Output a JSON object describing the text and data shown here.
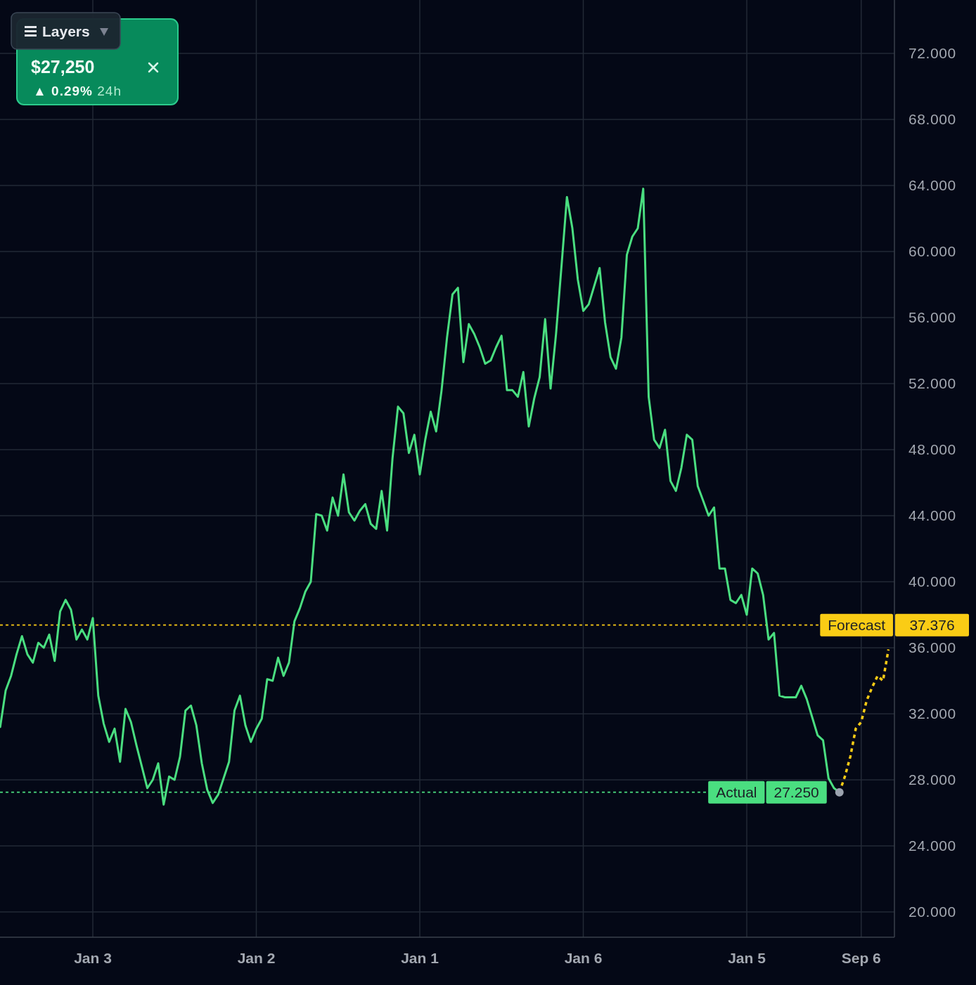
{
  "chart_data": {
    "type": "line",
    "categories": [
      null,
      null,
      null,
      null,
      null,
      null,
      null,
      null,
      null,
      null,
      null,
      null,
      null,
      null,
      null,
      null,
      null,
      "Jan 3",
      null,
      null,
      null,
      null,
      null,
      null,
      null,
      null,
      null,
      null,
      null,
      null,
      null,
      null,
      null,
      null,
      null,
      null,
      null,
      null,
      null,
      null,
      null,
      null,
      null,
      null,
      null,
      null,
      null,
      "Jan 2",
      null,
      null,
      null,
      null,
      null,
      null,
      null,
      null,
      null,
      null,
      null,
      null,
      null,
      null,
      null,
      null,
      null,
      null,
      null,
      null,
      null,
      null,
      null,
      null,
      null,
      null,
      null,
      null,
      null,
      "Jan 1",
      null,
      null,
      null,
      null,
      null,
      null,
      null,
      null,
      null,
      null,
      null,
      null,
      null,
      null,
      null,
      null,
      null,
      null,
      null,
      null,
      null,
      null,
      null,
      null,
      null,
      null,
      null,
      null,
      null,
      "Jan 6",
      null,
      null,
      null,
      null,
      null,
      null,
      null,
      null,
      null,
      null,
      null,
      null,
      null,
      null,
      null,
      null,
      null,
      null,
      null,
      null,
      null,
      null,
      null,
      null,
      null,
      null,
      null,
      null,
      null,
      "Jan 5",
      null,
      null,
      null,
      null,
      null,
      null,
      null,
      null,
      null,
      null,
      null,
      null,
      null,
      null,
      null,
      null,
      null,
      null,
      null,
      null,
      "Sep 6",
      null,
      null,
      null,
      null,
      null
    ],
    "series": [
      {
        "color": "#4ade80",
        "values": [
          31.2,
          33.4,
          34.3,
          35.6,
          36.7,
          35.6,
          35.1,
          36.3,
          36.0,
          36.8,
          35.2,
          38.2,
          38.9,
          38.3,
          36.5,
          37.1,
          36.5,
          37.8,
          33.1,
          31.4,
          30.3,
          31.1,
          29.1,
          32.3,
          31.5,
          30.1,
          28.8,
          27.5,
          28.0,
          29.0,
          26.5,
          28.2,
          28.0,
          29.4,
          32.2,
          32.5,
          31.3,
          29.0,
          27.4,
          26.6,
          27.1,
          28.1,
          29.1,
          32.2,
          33.1,
          31.3,
          30.3,
          31.1,
          31.7,
          34.1,
          34.0,
          35.4,
          34.3,
          35.1,
          37.6,
          38.4,
          39.4,
          40.0,
          44.1,
          44.0,
          43.1,
          45.1,
          44.0,
          46.5,
          44.2,
          43.7,
          44.3,
          44.7,
          43.5,
          43.2,
          45.5,
          43.1,
          47.5,
          50.6,
          50.2,
          47.8,
          48.9,
          46.5,
          48.6,
          50.3,
          49.1,
          51.6,
          54.8,
          57.4,
          57.8,
          53.3,
          55.6,
          55.0,
          54.2,
          53.2,
          53.4,
          54.2,
          54.9,
          51.6,
          51.6,
          51.2,
          52.7,
          49.4,
          51.1,
          52.4,
          55.9,
          51.7,
          55.0,
          59.1,
          63.3,
          61.4,
          58.3,
          56.4,
          56.8,
          57.9,
          59.0,
          55.7,
          53.6,
          52.9,
          54.8,
          59.8,
          60.9,
          61.4,
          63.8,
          51.2,
          48.6,
          48.1,
          49.2,
          46.1,
          45.5,
          46.9,
          48.9,
          48.6,
          45.8,
          44.9,
          44.0,
          44.5,
          40.8,
          40.8,
          38.9,
          38.7,
          39.2,
          38.0,
          40.8,
          40.5,
          39.2,
          36.5,
          36.9,
          33.1,
          33.0,
          33.0,
          33.0,
          33.7,
          32.9,
          31.8,
          30.7,
          30.4,
          28.1,
          27.5,
          27.25,
          null,
          null,
          null,
          null,
          null,
          null,
          null,
          null,
          null
        ]
      },
      {
        "color": "#facc15",
        "line_style": "dotted",
        "values": [
          null,
          null,
          null,
          null,
          null,
          null,
          null,
          null,
          null,
          null,
          null,
          null,
          null,
          null,
          null,
          null,
          null,
          null,
          null,
          null,
          null,
          null,
          null,
          null,
          null,
          null,
          null,
          null,
          null,
          null,
          null,
          null,
          null,
          null,
          null,
          null,
          null,
          null,
          null,
          null,
          null,
          null,
          null,
          null,
          null,
          null,
          null,
          null,
          null,
          null,
          null,
          null,
          null,
          null,
          null,
          null,
          null,
          null,
          null,
          null,
          null,
          null,
          null,
          null,
          null,
          null,
          null,
          null,
          null,
          null,
          null,
          null,
          null,
          null,
          null,
          null,
          null,
          null,
          null,
          null,
          null,
          null,
          null,
          null,
          null,
          null,
          null,
          null,
          null,
          null,
          null,
          null,
          null,
          null,
          null,
          null,
          null,
          null,
          null,
          null,
          null,
          null,
          null,
          null,
          null,
          null,
          null,
          null,
          null,
          null,
          null,
          null,
          null,
          null,
          null,
          null,
          null,
          null,
          null,
          null,
          null,
          null,
          null,
          null,
          null,
          null,
          null,
          null,
          null,
          null,
          null,
          null,
          null,
          null,
          null,
          null,
          null,
          null,
          null,
          null,
          null,
          null,
          null,
          null,
          null,
          null,
          null,
          null,
          null,
          null,
          null,
          null,
          null,
          null,
          27.25,
          28.2,
          29.4,
          31.1,
          31.5,
          32.8,
          33.6,
          34.3,
          34.0,
          35.9
        ]
      },
      {
        "type": "scatter",
        "color": "#9ca3af",
        "marker": "circle",
        "values": [
          null,
          null,
          null,
          null,
          null,
          null,
          null,
          null,
          null,
          null,
          null,
          null,
          null,
          null,
          null,
          null,
          null,
          null,
          null,
          null,
          null,
          null,
          null,
          null,
          null,
          null,
          null,
          null,
          null,
          null,
          null,
          null,
          null,
          null,
          null,
          null,
          null,
          null,
          null,
          null,
          null,
          null,
          null,
          null,
          null,
          null,
          null,
          null,
          null,
          null,
          null,
          null,
          null,
          null,
          null,
          null,
          null,
          null,
          null,
          null,
          null,
          null,
          null,
          null,
          null,
          null,
          null,
          null,
          null,
          null,
          null,
          null,
          null,
          null,
          null,
          null,
          null,
          null,
          null,
          null,
          null,
          null,
          null,
          null,
          null,
          null,
          null,
          null,
          null,
          null,
          null,
          null,
          null,
          null,
          null,
          null,
          null,
          null,
          null,
          null,
          null,
          null,
          null,
          null,
          null,
          null,
          null,
          null,
          null,
          null,
          null,
          null,
          null,
          null,
          null,
          null,
          null,
          null,
          null,
          null,
          null,
          null,
          null,
          null,
          null,
          null,
          null,
          null,
          null,
          null,
          null,
          null,
          null,
          null,
          null,
          null,
          null,
          null,
          null,
          null,
          null,
          null,
          null,
          null,
          null,
          null,
          null,
          null,
          null,
          null,
          null,
          null,
          null,
          null,
          27.25,
          null,
          null,
          null,
          null,
          null,
          null,
          null,
          null,
          null
        ]
      }
    ],
    "ylim": [
      18.47,
      75.23
    ],
    "yticks": [
      {
        "value": 20,
        "label": "20.000"
      },
      {
        "value": 24,
        "label": "24.000"
      },
      {
        "value": 28,
        "label": "28.000"
      },
      {
        "value": 32,
        "label": "32.000"
      },
      {
        "value": 36,
        "label": "36.000"
      },
      {
        "value": 40,
        "label": "40.000"
      },
      {
        "value": 44,
        "label": "44.000"
      },
      {
        "value": 48,
        "label": "48.000"
      },
      {
        "value": 52,
        "label": "52.000"
      },
      {
        "value": 56,
        "label": "56.000"
      },
      {
        "value": 60,
        "label": "60.000"
      },
      {
        "value": 64,
        "label": "64.000"
      },
      {
        "value": 68,
        "label": "68.000"
      },
      {
        "value": 72,
        "label": "72.000"
      }
    ],
    "grid": true,
    "ref_lines": [
      {
        "axis": "y",
        "value": 37.376,
        "label": "Forecast",
        "color": "#facc15",
        "line_style": "dotted"
      },
      {
        "axis": "y",
        "value": 27.25,
        "label": "Actual",
        "color": "#4ade80",
        "line_style": "dotted"
      }
    ],
    "annotations": [
      "Layers",
      "$27,250",
      "▲ 0.29% 24h",
      "37.376",
      "27.250"
    ]
  }
}
